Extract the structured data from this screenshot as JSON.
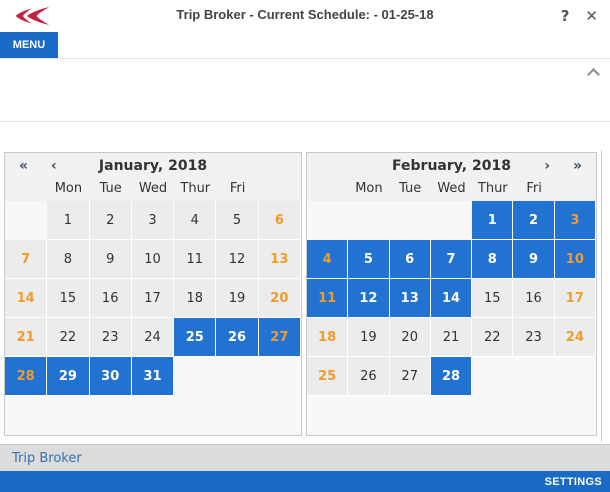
{
  "titlebar": {
    "title": "Trip Broker - Current Schedule: - 01-25-18",
    "help": "?",
    "close": "✕"
  },
  "menu": {
    "label": "MENU"
  },
  "calendars": {
    "weekdays": [
      "Mon",
      "Tue",
      "Wed",
      "Thur",
      "Fri"
    ],
    "nav": {
      "fast_prev": "«",
      "prev": "‹",
      "next": "›",
      "fast_next": "»"
    },
    "months": [
      {
        "key": "january-2018",
        "title": "January, 2018",
        "weeks": [
          [
            0,
            1,
            2,
            3,
            4,
            5,
            6
          ],
          [
            7,
            8,
            9,
            10,
            11,
            12,
            13
          ],
          [
            14,
            15,
            16,
            17,
            18,
            19,
            20
          ],
          [
            21,
            22,
            23,
            24,
            25,
            26,
            27
          ],
          [
            28,
            29,
            30,
            31,
            0,
            0,
            0
          ],
          [
            0,
            0,
            0,
            0,
            0,
            0,
            0
          ]
        ],
        "selected": [
          25,
          26,
          27,
          28,
          29,
          30,
          31
        ]
      },
      {
        "key": "february-2018",
        "title": "February, 2018",
        "weeks": [
          [
            0,
            0,
            0,
            0,
            1,
            2,
            3
          ],
          [
            4,
            5,
            6,
            7,
            8,
            9,
            10
          ],
          [
            11,
            12,
            13,
            14,
            15,
            16,
            17
          ],
          [
            18,
            19,
            20,
            21,
            22,
            23,
            24
          ],
          [
            25,
            26,
            27,
            28,
            0,
            0,
            0
          ],
          [
            0,
            0,
            0,
            0,
            0,
            0,
            0
          ]
        ],
        "selected": [
          1,
          2,
          3,
          4,
          5,
          6,
          7,
          8,
          9,
          10,
          11,
          12,
          13,
          14,
          28
        ]
      }
    ]
  },
  "footer": {
    "panel_label": "Trip Broker",
    "settings_label": "SETTINGS"
  },
  "colors": {
    "accent_blue": "#1a6bc6",
    "selected_blue": "#2272d2",
    "weekend_orange": "#f09c2a",
    "footer_text": "#3470b2",
    "logo_red": "#c2223a"
  }
}
